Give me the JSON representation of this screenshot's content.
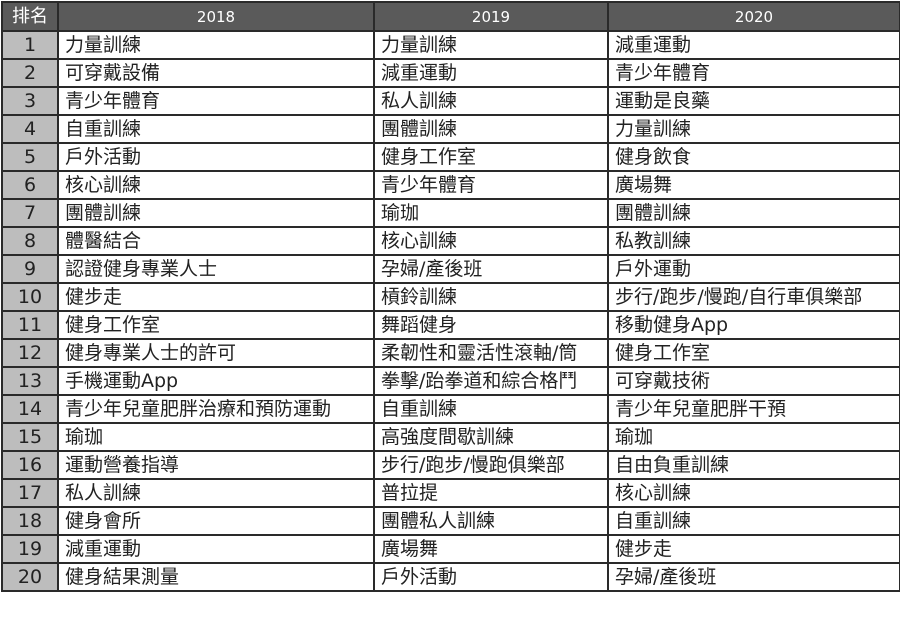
{
  "headers": {
    "rank": "排名",
    "y2018": "2018",
    "y2019": "2019",
    "y2020": "2020"
  },
  "rows": [
    {
      "rank": "1",
      "y2018": "力量訓練",
      "y2019": "力量訓練",
      "y2020": "減重運動"
    },
    {
      "rank": "2",
      "y2018": "可穿戴設備",
      "y2019": "減重運動",
      "y2020": "青少年體育"
    },
    {
      "rank": "3",
      "y2018": "青少年體育",
      "y2019": "私人訓練",
      "y2020": "運動是良藥"
    },
    {
      "rank": "4",
      "y2018": "自重訓練",
      "y2019": "團體訓練",
      "y2020": "力量訓練"
    },
    {
      "rank": "5",
      "y2018": "戶外活動",
      "y2019": "健身工作室",
      "y2020": "健身飲食"
    },
    {
      "rank": "6",
      "y2018": "核心訓練",
      "y2019": "青少年體育",
      "y2020": "廣場舞"
    },
    {
      "rank": "7",
      "y2018": "團體訓練",
      "y2019": "瑜珈",
      "y2020": "團體訓練"
    },
    {
      "rank": "8",
      "y2018": "體醫結合",
      "y2019": "核心訓練",
      "y2020": "私教訓練"
    },
    {
      "rank": "9",
      "y2018": "認證健身專業人士",
      "y2019": "孕婦/產後班",
      "y2020": "戶外運動"
    },
    {
      "rank": "10",
      "y2018": "健步走",
      "y2019": "槓鈴訓練",
      "y2020": "步行/跑步/慢跑/自行車俱樂部"
    },
    {
      "rank": "11",
      "y2018": "健身工作室",
      "y2019": "舞蹈健身",
      "y2020": "移動健身App"
    },
    {
      "rank": "12",
      "y2018": "健身專業人士的許可",
      "y2019": "柔韌性和靈活性滾軸/筒",
      "y2020": "健身工作室"
    },
    {
      "rank": "13",
      "y2018": "手機運動App",
      "y2019": "拳擊/跆拳道和綜合格鬥",
      "y2020": "可穿戴技術"
    },
    {
      "rank": "14",
      "y2018": "青少年兒童肥胖治療和預防運動",
      "y2019": "自重訓練",
      "y2020": "青少年兒童肥胖干預"
    },
    {
      "rank": "15",
      "y2018": "瑜珈",
      "y2019": "高強度間歇訓練",
      "y2020": "瑜珈"
    },
    {
      "rank": "16",
      "y2018": "運動營養指導",
      "y2019": "步行/跑步/慢跑俱樂部",
      "y2020": "自由負重訓練"
    },
    {
      "rank": "17",
      "y2018": "私人訓練",
      "y2019": "普拉提",
      "y2020": "核心訓練"
    },
    {
      "rank": "18",
      "y2018": "健身會所",
      "y2019": "團體私人訓練",
      "y2020": "自重訓練"
    },
    {
      "rank": "19",
      "y2018": "減重運動",
      "y2019": "廣場舞",
      "y2020": "健步走"
    },
    {
      "rank": "20",
      "y2018": "健身結果測量",
      "y2019": "戶外活動",
      "y2020": "孕婦/產後班"
    }
  ]
}
